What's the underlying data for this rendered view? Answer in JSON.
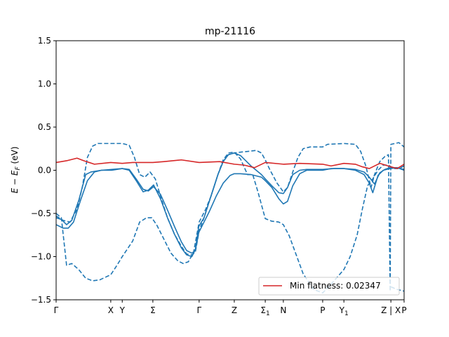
{
  "chart_data": {
    "type": "line",
    "title": "mp-21116",
    "ylabel": "E − E_F (eV)",
    "xlabel": "",
    "ylim": [
      -1.5,
      1.5
    ],
    "xlim": [
      0,
      1
    ],
    "y_ticks": [
      -1.5,
      -1.0,
      -0.5,
      0.0,
      0.5,
      1.0,
      1.5
    ],
    "y_tick_labels": [
      "−1.5",
      "−1.0",
      "−0.5",
      "0.0",
      "0.5",
      "1.0",
      "1.5"
    ],
    "k_ticks": [
      {
        "x": 0.0,
        "label": "Γ",
        "sub": ""
      },
      {
        "x": 0.157,
        "label": "X",
        "sub": ""
      },
      {
        "x": 0.19,
        "label": "Y",
        "sub": ""
      },
      {
        "x": 0.278,
        "label": "Σ",
        "sub": ""
      },
      {
        "x": 0.411,
        "label": "Γ",
        "sub": ""
      },
      {
        "x": 0.512,
        "label": "Z",
        "sub": ""
      },
      {
        "x": 0.601,
        "label": "Σ",
        "sub": "1"
      },
      {
        "x": 0.653,
        "label": "N",
        "sub": ""
      },
      {
        "x": 0.766,
        "label": "P",
        "sub": ""
      },
      {
        "x": 0.827,
        "label": "Y",
        "sub": "1"
      },
      {
        "x": 0.962,
        "label": "Z | X",
        "sub": ""
      },
      {
        "x": 1.0,
        "label": "P",
        "sub": ""
      }
    ],
    "legend": {
      "placement": "lower-right",
      "label": "Min flatness: 0.02347"
    },
    "colors": {
      "blue": "#1f77b4",
      "red": "#d62728"
    },
    "series": [
      {
        "style": "solid",
        "color": "#1f77b4",
        "points": [
          [
            0.0,
            -0.63
          ],
          [
            0.02,
            -0.67
          ],
          [
            0.035,
            -0.67
          ],
          [
            0.05,
            -0.6
          ],
          [
            0.07,
            -0.35
          ],
          [
            0.09,
            -0.12
          ],
          [
            0.11,
            -0.02
          ],
          [
            0.13,
            0.0
          ],
          [
            0.16,
            0.0
          ],
          [
            0.19,
            0.02
          ],
          [
            0.21,
            0.01
          ],
          [
            0.23,
            -0.1
          ],
          [
            0.25,
            -0.22
          ],
          [
            0.265,
            -0.24
          ],
          [
            0.28,
            -0.19
          ],
          [
            0.3,
            -0.28
          ],
          [
            0.32,
            -0.46
          ],
          [
            0.34,
            -0.65
          ],
          [
            0.36,
            -0.83
          ],
          [
            0.375,
            -0.93
          ],
          [
            0.39,
            -0.96
          ],
          [
            0.4,
            -0.93
          ],
          [
            0.41,
            -0.72
          ],
          [
            0.425,
            -0.6
          ],
          [
            0.44,
            -0.48
          ],
          [
            0.46,
            -0.3
          ],
          [
            0.48,
            -0.15
          ],
          [
            0.5,
            -0.06
          ],
          [
            0.512,
            -0.04
          ],
          [
            0.53,
            -0.04
          ],
          [
            0.56,
            -0.05
          ],
          [
            0.59,
            -0.08
          ],
          [
            0.601,
            -0.12
          ],
          [
            0.62,
            -0.2
          ],
          [
            0.64,
            -0.33
          ],
          [
            0.653,
            -0.39
          ],
          [
            0.665,
            -0.36
          ],
          [
            0.68,
            -0.18
          ],
          [
            0.7,
            -0.04
          ],
          [
            0.72,
            0.0
          ],
          [
            0.75,
            0.0
          ],
          [
            0.766,
            0.0
          ],
          [
            0.79,
            0.02
          ],
          [
            0.827,
            0.02
          ],
          [
            0.86,
            0.01
          ],
          [
            0.885,
            -0.02
          ],
          [
            0.9,
            -0.08
          ],
          [
            0.915,
            -0.16
          ],
          [
            0.93,
            -0.03
          ],
          [
            0.945,
            0.01
          ],
          [
            0.96,
            0.03
          ],
          [
            0.98,
            0.03
          ],
          [
            1.0,
            0.0
          ]
        ]
      },
      {
        "style": "solid",
        "color": "#1f77b4",
        "points": [
          [
            0.0,
            -0.55
          ],
          [
            0.015,
            -0.57
          ],
          [
            0.03,
            -0.63
          ],
          [
            0.045,
            -0.58
          ],
          [
            0.065,
            -0.35
          ],
          [
            0.085,
            -0.05
          ],
          [
            0.1,
            -0.02
          ],
          [
            0.13,
            0.0
          ],
          [
            0.16,
            0.01
          ],
          [
            0.19,
            0.02
          ],
          [
            0.21,
            0.0
          ],
          [
            0.23,
            -0.12
          ],
          [
            0.25,
            -0.25
          ],
          [
            0.265,
            -0.23
          ],
          [
            0.28,
            -0.17
          ],
          [
            0.3,
            -0.33
          ],
          [
            0.32,
            -0.55
          ],
          [
            0.34,
            -0.74
          ],
          [
            0.36,
            -0.9
          ],
          [
            0.375,
            -0.98
          ],
          [
            0.39,
            -1.0
          ],
          [
            0.4,
            -0.92
          ],
          [
            0.41,
            -0.65
          ],
          [
            0.425,
            -0.55
          ],
          [
            0.445,
            -0.3
          ],
          [
            0.465,
            -0.05
          ],
          [
            0.48,
            0.1
          ],
          [
            0.495,
            0.18
          ],
          [
            0.512,
            0.2
          ],
          [
            0.53,
            0.17
          ],
          [
            0.56,
            0.05
          ],
          [
            0.59,
            -0.05
          ],
          [
            0.601,
            -0.1
          ],
          [
            0.62,
            -0.18
          ],
          [
            0.64,
            -0.26
          ],
          [
            0.653,
            -0.27
          ],
          [
            0.665,
            -0.2
          ],
          [
            0.68,
            -0.05
          ],
          [
            0.7,
            0.0
          ],
          [
            0.72,
            0.01
          ],
          [
            0.766,
            0.01
          ],
          [
            0.8,
            0.02
          ],
          [
            0.827,
            0.02
          ],
          [
            0.86,
            0.0
          ],
          [
            0.885,
            -0.05
          ],
          [
            0.9,
            -0.15
          ],
          [
            0.91,
            -0.26
          ],
          [
            0.925,
            -0.06
          ],
          [
            0.94,
            0.0
          ],
          [
            0.96,
            0.02
          ],
          [
            0.98,
            0.03
          ],
          [
            1.0,
            0.01
          ]
        ]
      },
      {
        "style": "dashed",
        "color": "#1f77b4",
        "points": [
          [
            0.0,
            -0.5
          ],
          [
            0.015,
            -0.55
          ],
          [
            0.03,
            -1.1
          ],
          [
            0.045,
            -1.08
          ],
          [
            0.065,
            -1.15
          ],
          [
            0.085,
            -1.25
          ],
          [
            0.105,
            -1.28
          ],
          [
            0.125,
            -1.27
          ],
          [
            0.157,
            -1.21
          ],
          [
            0.175,
            -1.1
          ],
          [
            0.19,
            -1.0
          ],
          [
            0.22,
            -0.82
          ],
          [
            0.24,
            -0.6
          ],
          [
            0.26,
            -0.55
          ],
          [
            0.275,
            -0.55
          ],
          [
            0.29,
            -0.64
          ],
          [
            0.31,
            -0.8
          ],
          [
            0.33,
            -0.96
          ],
          [
            0.35,
            -1.05
          ],
          [
            0.365,
            -1.08
          ],
          [
            0.38,
            -1.06
          ],
          [
            0.395,
            -0.95
          ],
          [
            0.411,
            -0.6
          ],
          [
            0.43,
            -0.45
          ],
          [
            0.445,
            -0.3
          ],
          [
            0.465,
            -0.05
          ],
          [
            0.48,
            0.12
          ],
          [
            0.495,
            0.2
          ],
          [
            0.512,
            0.21
          ],
          [
            0.53,
            0.13
          ],
          [
            0.55,
            -0.05
          ],
          [
            0.565,
            -0.05
          ],
          [
            0.58,
            -0.25
          ],
          [
            0.601,
            -0.56
          ],
          [
            0.62,
            -0.59
          ],
          [
            0.64,
            -0.6
          ],
          [
            0.653,
            -0.63
          ],
          [
            0.67,
            -0.76
          ],
          [
            0.69,
            -0.98
          ],
          [
            0.71,
            -1.2
          ],
          [
            0.74,
            -1.38
          ],
          [
            0.766,
            -1.42
          ],
          [
            0.79,
            -1.32
          ],
          [
            0.827,
            -1.15
          ],
          [
            0.845,
            -1.0
          ],
          [
            0.865,
            -0.75
          ],
          [
            0.88,
            -0.45
          ],
          [
            0.895,
            -0.18
          ],
          [
            0.91,
            -0.1
          ],
          [
            0.925,
            0.0
          ],
          [
            0.94,
            0.06
          ],
          [
            0.955,
            0.06
          ],
          [
            0.97,
            0.02
          ],
          [
            0.985,
            0.02
          ],
          [
            1.0,
            0.05
          ]
        ]
      },
      {
        "style": "dashed",
        "color": "#1f77b4",
        "points": [
          [
            0.0,
            -0.53
          ],
          [
            0.02,
            -0.58
          ],
          [
            0.04,
            -0.6
          ],
          [
            0.06,
            -0.45
          ],
          [
            0.075,
            -0.2
          ],
          [
            0.09,
            0.15
          ],
          [
            0.105,
            0.28
          ],
          [
            0.12,
            0.31
          ],
          [
            0.157,
            0.31
          ],
          [
            0.19,
            0.31
          ],
          [
            0.21,
            0.29
          ],
          [
            0.225,
            0.15
          ],
          [
            0.24,
            -0.05
          ],
          [
            0.255,
            -0.08
          ],
          [
            0.27,
            -0.02
          ],
          [
            0.285,
            -0.1
          ],
          [
            0.3,
            -0.3
          ],
          [
            0.32,
            -0.55
          ],
          [
            0.34,
            -0.74
          ],
          [
            0.36,
            -0.88
          ],
          [
            0.375,
            -0.97
          ],
          [
            0.39,
            -0.98
          ],
          [
            0.4,
            -0.95
          ],
          [
            0.411,
            -0.7
          ],
          [
            0.425,
            -0.55
          ],
          [
            0.445,
            -0.3
          ],
          [
            0.465,
            -0.05
          ],
          [
            0.48,
            0.1
          ],
          [
            0.495,
            0.18
          ],
          [
            0.512,
            0.2
          ],
          [
            0.53,
            0.21
          ],
          [
            0.555,
            0.22
          ],
          [
            0.575,
            0.23
          ],
          [
            0.59,
            0.2
          ],
          [
            0.601,
            0.12
          ],
          [
            0.615,
            0.0
          ],
          [
            0.635,
            -0.15
          ],
          [
            0.653,
            -0.25
          ],
          [
            0.665,
            -0.2
          ],
          [
            0.68,
            -0.02
          ],
          [
            0.695,
            0.15
          ],
          [
            0.71,
            0.25
          ],
          [
            0.73,
            0.27
          ],
          [
            0.766,
            0.27
          ],
          [
            0.78,
            0.3
          ],
          [
            0.827,
            0.31
          ],
          [
            0.86,
            0.3
          ],
          [
            0.875,
            0.22
          ],
          [
            0.89,
            0.05
          ],
          [
            0.905,
            -0.2
          ],
          [
            0.915,
            -0.05
          ],
          [
            0.93,
            0.1
          ],
          [
            0.945,
            0.16
          ],
          [
            0.955,
            0.18
          ],
          [
            0.96,
            -1.4
          ],
          [
            0.962,
            0.3
          ],
          [
            0.985,
            0.32
          ],
          [
            1.0,
            0.27
          ]
        ]
      },
      {
        "style": "dashed",
        "color": "#1f77b4",
        "points": [
          [
            0.962,
            -1.35
          ],
          [
            0.98,
            -1.38
          ],
          [
            1.0,
            -1.4
          ]
        ]
      },
      {
        "style": "solid",
        "color": "#d62728",
        "points": [
          [
            0.0,
            0.09
          ],
          [
            0.03,
            0.11
          ],
          [
            0.06,
            0.14
          ],
          [
            0.08,
            0.11
          ],
          [
            0.11,
            0.07
          ],
          [
            0.157,
            0.09
          ],
          [
            0.19,
            0.08
          ],
          [
            0.22,
            0.09
          ],
          [
            0.278,
            0.09
          ],
          [
            0.31,
            0.1
          ],
          [
            0.36,
            0.12
          ],
          [
            0.411,
            0.09
          ],
          [
            0.47,
            0.1
          ],
          [
            0.512,
            0.07
          ],
          [
            0.54,
            0.06
          ],
          [
            0.57,
            0.03
          ],
          [
            0.601,
            0.09
          ],
          [
            0.653,
            0.07
          ],
          [
            0.7,
            0.08
          ],
          [
            0.766,
            0.07
          ],
          [
            0.79,
            0.05
          ],
          [
            0.827,
            0.08
          ],
          [
            0.86,
            0.07
          ],
          [
            0.88,
            0.04
          ],
          [
            0.9,
            0.02
          ],
          [
            0.93,
            0.08
          ],
          [
            0.962,
            0.04
          ],
          [
            0.98,
            0.02
          ],
          [
            1.0,
            0.07
          ]
        ]
      }
    ]
  }
}
